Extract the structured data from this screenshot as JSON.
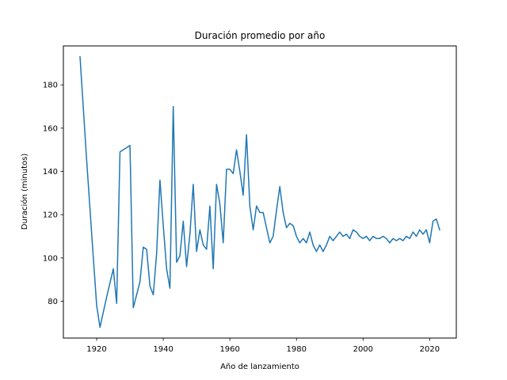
{
  "chart_data": {
    "type": "line",
    "title": "Duración promedio por año",
    "xlabel": "Año de lanzamiento",
    "ylabel": "Duración (minutos)",
    "xlim": [
      1910,
      2028
    ],
    "ylim": [
      63,
      198
    ],
    "xticks": [
      1920,
      1940,
      1960,
      1980,
      2000,
      2020
    ],
    "yticks": [
      80,
      100,
      120,
      140,
      160,
      180
    ],
    "grid": false,
    "color": "#1f77b4",
    "series": [
      {
        "name": "Duración promedio",
        "x": [
          1915,
          1917,
          1919,
          1920,
          1921,
          1923,
          1925,
          1926,
          1927,
          1930,
          1931,
          1933,
          1934,
          1935,
          1936,
          1937,
          1938,
          1939,
          1940,
          1941,
          1942,
          1943,
          1944,
          1945,
          1946,
          1947,
          1948,
          1949,
          1950,
          1951,
          1952,
          1953,
          1954,
          1955,
          1956,
          1957,
          1958,
          1959,
          1960,
          1961,
          1962,
          1963,
          1964,
          1965,
          1966,
          1967,
          1968,
          1969,
          1970,
          1971,
          1972,
          1973,
          1974,
          1975,
          1976,
          1977,
          1978,
          1979,
          1980,
          1981,
          1982,
          1983,
          1984,
          1985,
          1986,
          1987,
          1988,
          1989,
          1990,
          1991,
          1992,
          1993,
          1994,
          1995,
          1996,
          1997,
          1998,
          1999,
          2000,
          2001,
          2002,
          2003,
          2004,
          2005,
          2006,
          2007,
          2008,
          2009,
          2010,
          2011,
          2012,
          2013,
          2014,
          2015,
          2016,
          2017,
          2018,
          2019,
          2020,
          2021,
          2022,
          2023
        ],
        "y": [
          193,
          145,
          100,
          78,
          68,
          82,
          95,
          79,
          149,
          152,
          77,
          89,
          105,
          104,
          87,
          83,
          102,
          136,
          115,
          95,
          86,
          170,
          98,
          101,
          117,
          96,
          111,
          134,
          103,
          113,
          106,
          104,
          124,
          95,
          134,
          125,
          107,
          141,
          141,
          139,
          150,
          140,
          129,
          157,
          124,
          113,
          124,
          121,
          121,
          114,
          107,
          110,
          122,
          133,
          121,
          114,
          116,
          115,
          110,
          107,
          109,
          107,
          112,
          106,
          103,
          106,
          103,
          106,
          110,
          108,
          110,
          112,
          110,
          111,
          109,
          113,
          112,
          110,
          109,
          110,
          108,
          110,
          109,
          109,
          110,
          109,
          107,
          109,
          108,
          109,
          108,
          110,
          109,
          112,
          110,
          113,
          111,
          113,
          107,
          117,
          118,
          113
        ]
      }
    ]
  }
}
